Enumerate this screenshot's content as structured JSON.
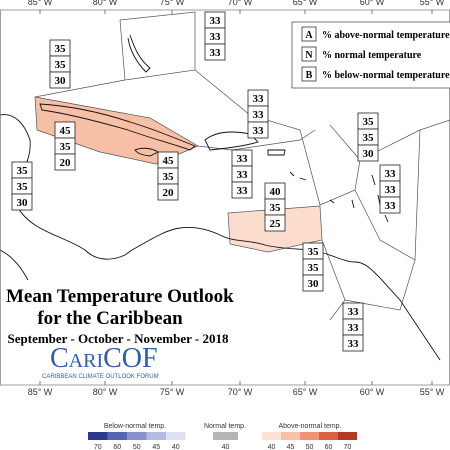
{
  "longitudes": [
    "85° W",
    "80° W",
    "75° W",
    "70° W",
    "65° W",
    "60° W",
    "55° W"
  ],
  "legend": [
    {
      "letter": "A",
      "text": "% above-normal temperature"
    },
    {
      "letter": "N",
      "text": "% normal temperature"
    },
    {
      "letter": "B",
      "text": "% below-normal temperature"
    }
  ],
  "title": {
    "line1": "Mean Temperature Outlook",
    "line2": "for the Caribbean",
    "line3": "September - October - November - 2018"
  },
  "logo": {
    "name": "CariCOF",
    "tagline": "CARIBBEAN CLIMATE OUTLOOK FORUM"
  },
  "forecasts": [
    [
      33,
      33,
      33
    ],
    [
      35,
      35,
      30
    ],
    [
      33,
      33,
      33
    ],
    [
      35,
      35,
      30
    ],
    [
      45,
      35,
      20
    ],
    [
      35,
      35,
      30
    ],
    [
      45,
      35,
      20
    ],
    [
      33,
      33,
      33
    ],
    [
      33,
      33,
      33
    ],
    [
      40,
      35,
      25
    ],
    [
      35,
      35,
      30
    ],
    [
      33,
      33,
      33
    ]
  ],
  "color_scale": {
    "below": {
      "label": "Below-normal temp.",
      "ticks": [
        70,
        60,
        50,
        45,
        40
      ],
      "colors": [
        "#2b3a8c",
        "#5566b0",
        "#8893cb",
        "#b3bbe0",
        "#dde1f1"
      ]
    },
    "normal": {
      "label": "Normal temp.",
      "ticks": [
        40
      ],
      "colors": [
        "#b5b5b5"
      ]
    },
    "above": {
      "label": "Above-normal temp.",
      "ticks": [
        40,
        45,
        50,
        60,
        70
      ],
      "colors": [
        "#fde3d6",
        "#f8c0a8",
        "#ee9474",
        "#d9623f",
        "#b03a22"
      ]
    }
  }
}
